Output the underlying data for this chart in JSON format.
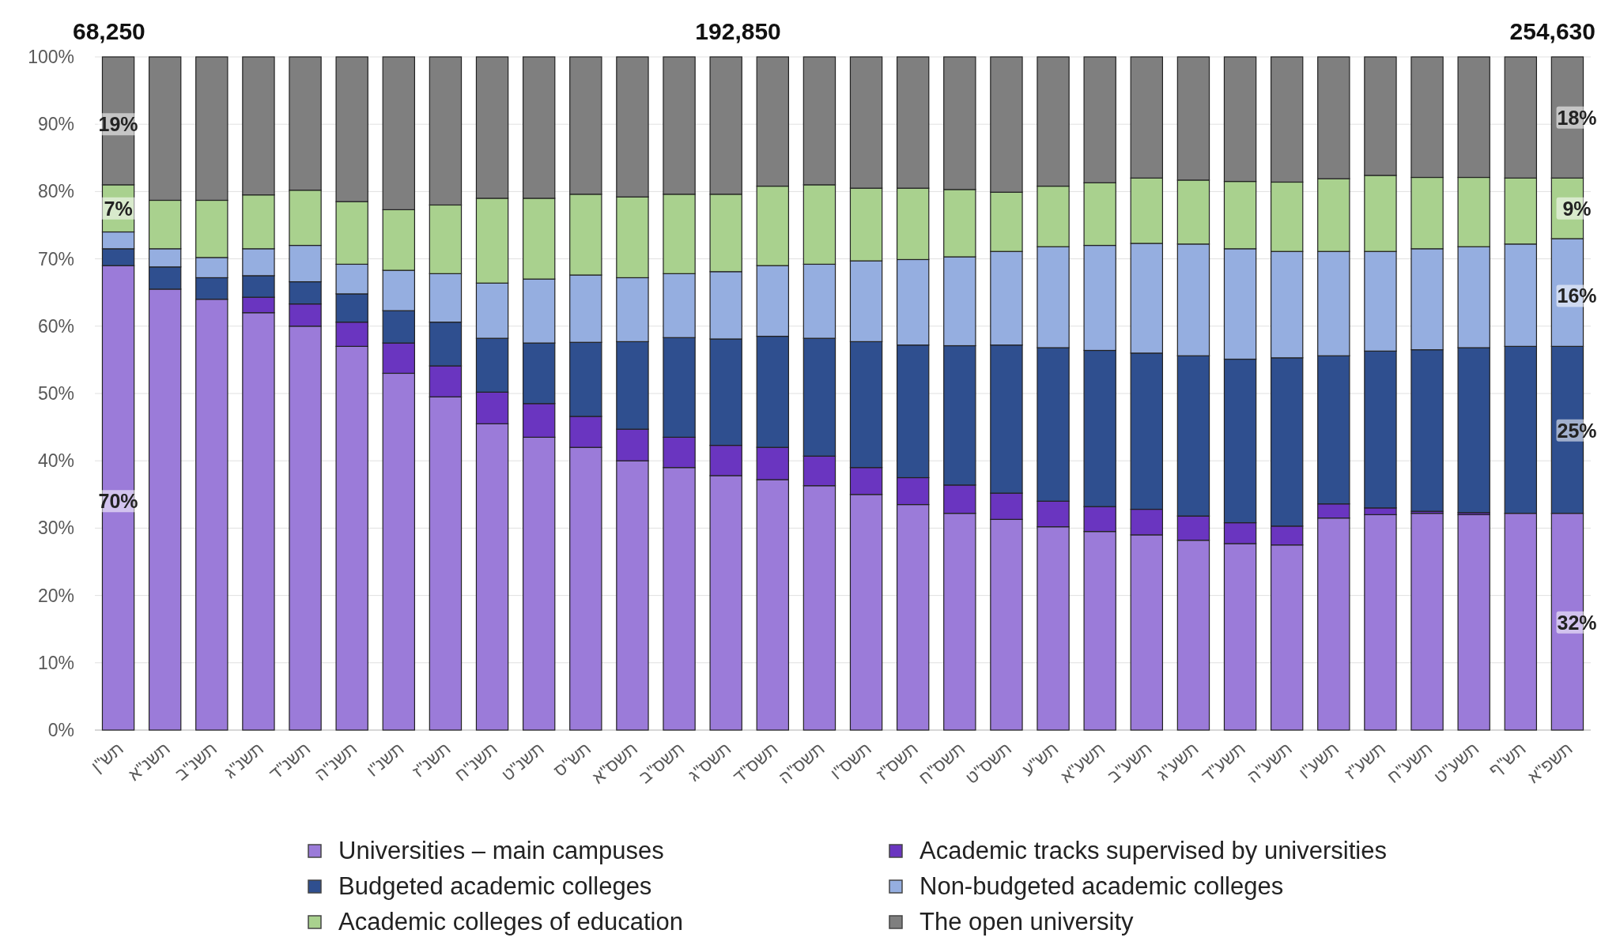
{
  "chart_data": {
    "type": "bar",
    "stacked": true,
    "categories": [
      "תש\"ן",
      "תשנ\"א",
      "תשנ\"ב",
      "תשנ\"ג",
      "תשנ\"ד",
      "תשנ\"ה",
      "תשנ\"ו",
      "תשנ\"ז",
      "תשנ\"ח",
      "תשנ\"ט",
      "תש\"ס",
      "תשס\"א",
      "תשס\"ב",
      "תשס\"ג",
      "תשס\"ד",
      "תשס\"ה",
      "תשס\"ו",
      "תשס\"ז",
      "תשס\"ח",
      "תשס\"ט",
      "תש\"ע",
      "תשע\"א",
      "תשע\"ב",
      "תשע\"ג",
      "תשע\"ד",
      "תשע\"ה",
      "תשע\"ו",
      "תשע\"ז",
      "תשע\"ח",
      "תשע\"ט",
      "תש\"ף",
      "תשפ\"א"
    ],
    "series": [
      {
        "name": "Universities – main campuses",
        "color": "#9b7bd9",
        "values": [
          69,
          65.5,
          64,
          62,
          60,
          57,
          53,
          49.5,
          45.5,
          43.5,
          42,
          40,
          39,
          37.8,
          37.2,
          36.3,
          35,
          33.5,
          32.2,
          31.3,
          30.2,
          29.5,
          29,
          28.2,
          27.7,
          27.5,
          31.5,
          32,
          32.2,
          32,
          32.2,
          32.2
        ]
      },
      {
        "name": "Academic tracks supervised by universities",
        "color": "#6a35c0",
        "values": [
          0,
          0,
          0,
          2.3,
          3.3,
          3.6,
          4.5,
          4.6,
          4.7,
          5,
          4.6,
          4.7,
          4.5,
          4.5,
          4.8,
          4.4,
          4,
          4,
          4.2,
          3.9,
          3.8,
          3.7,
          3.8,
          3.6,
          3.1,
          2.8,
          2.1,
          1,
          0.3,
          0.3,
          0,
          0
        ]
      },
      {
        "name": "Budgeted academic colleges",
        "color": "#2f4f8f",
        "values": [
          2.5,
          3.3,
          3.2,
          3.2,
          3.3,
          4.2,
          4.8,
          6.5,
          8,
          9,
          11,
          13,
          14.8,
          15.8,
          16.5,
          17.5,
          18.7,
          19.7,
          20.7,
          22,
          22.8,
          23.2,
          23.2,
          23.8,
          24.3,
          25,
          22,
          23.3,
          24,
          24.5,
          24.8,
          24.8
        ]
      },
      {
        "name": "Non-budgeted academic colleges",
        "color": "#95aee0",
        "values": [
          2.5,
          2.7,
          3,
          4,
          5.4,
          4.4,
          6,
          7.2,
          8.2,
          9.5,
          10,
          9.5,
          9.5,
          10,
          10.5,
          11,
          12,
          12.7,
          13.2,
          13.9,
          15,
          15.6,
          16.3,
          16.6,
          16.4,
          15.8,
          15.5,
          14.8,
          15,
          15,
          15.2,
          16
        ]
      },
      {
        "name": "Academic colleges of education",
        "color": "#a9d18e",
        "values": [
          7,
          7.2,
          8.5,
          8,
          8.2,
          9.3,
          9,
          10.2,
          12.6,
          12,
          12,
          12,
          11.8,
          11.5,
          11.8,
          11.8,
          10.8,
          10.6,
          10,
          8.8,
          9,
          9.3,
          9.7,
          9.5,
          10,
          10.3,
          10.8,
          11.3,
          10.6,
          10.3,
          9.8,
          9
        ]
      },
      {
        "name": "The open university",
        "color": "#7f7f7f",
        "values": [
          19,
          21.3,
          21.3,
          20.5,
          19.8,
          21.5,
          22.7,
          22,
          21,
          21,
          20.4,
          20.8,
          20.4,
          20.4,
          19.2,
          19,
          19.5,
          19.5,
          19.7,
          20.1,
          19.2,
          18.7,
          18,
          18.3,
          18.5,
          18.6,
          18.1,
          17.6,
          17.9,
          17.9,
          18,
          18
        ]
      }
    ],
    "ylim": [
      0,
      100
    ],
    "yticks": [
      {
        "value": 0,
        "label": "0%"
      },
      {
        "value": 10,
        "label": "10%"
      },
      {
        "value": 20,
        "label": "20%"
      },
      {
        "value": 30,
        "label": "30%"
      },
      {
        "value": 40,
        "label": "40%"
      },
      {
        "value": 50,
        "label": "50%"
      },
      {
        "value": 60,
        "label": "60%"
      },
      {
        "value": 70,
        "label": "70%"
      },
      {
        "value": 80,
        "label": "80%"
      },
      {
        "value": 90,
        "label": "90%"
      },
      {
        "value": 100,
        "label": "100%"
      }
    ],
    "grid": "y",
    "legend": "bottom",
    "annotations": [
      "68,250",
      "192,850",
      "254,630",
      {
        "text": "19%",
        "x": "תש\"ן",
        "y": 90
      },
      {
        "text": "7%",
        "x": "תש\"ן",
        "y": 77.5
      },
      {
        "text": "70%",
        "x": "תש\"ן",
        "y": 34
      },
      {
        "text": "18%",
        "x": "תשפ\"א",
        "y": 91
      },
      {
        "text": "9%",
        "x": "תשפ\"א",
        "y": 77.5
      },
      {
        "text": "16%",
        "x": "תשפ\"א",
        "y": 64.5
      },
      {
        "text": "25%",
        "x": "תשפ\"א",
        "y": 44.5
      },
      {
        "text": "32%",
        "x": "תשפ\"א",
        "y": 16
      }
    ]
  }
}
